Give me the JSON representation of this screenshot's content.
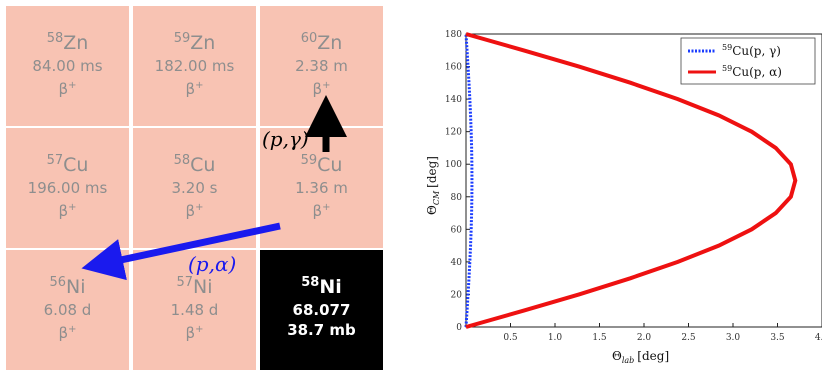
{
  "nuclide_chart": {
    "cells": [
      {
        "mass": "58",
        "symbol": "Zn",
        "halflife": "84.00 ms",
        "mode_base": "β",
        "mode_sup": "+",
        "stable": false
      },
      {
        "mass": "59",
        "symbol": "Zn",
        "halflife": "182.00 ms",
        "mode_base": "β",
        "mode_sup": "+",
        "stable": false
      },
      {
        "mass": "60",
        "symbol": "Zn",
        "halflife": "2.38 m",
        "mode_base": "β",
        "mode_sup": "+",
        "stable": false
      },
      {
        "mass": "57",
        "symbol": "Cu",
        "halflife": "196.00 ms",
        "mode_base": "β",
        "mode_sup": "+",
        "stable": false
      },
      {
        "mass": "58",
        "symbol": "Cu",
        "halflife": "3.20 s",
        "mode_base": "β",
        "mode_sup": "+",
        "stable": false
      },
      {
        "mass": "59",
        "symbol": "Cu",
        "halflife": "1.36 m",
        "mode_base": "β",
        "mode_sup": "+",
        "stable": false
      },
      {
        "mass": "56",
        "symbol": "Ni",
        "halflife": "6.08 d",
        "mode_base": "β",
        "mode_sup": "+",
        "stable": false
      },
      {
        "mass": "57",
        "symbol": "Ni",
        "halflife": "1.48 d",
        "mode_base": "β",
        "mode_sup": "+",
        "stable": false
      },
      {
        "mass": "58",
        "symbol": "Ni",
        "abundance": "68.077",
        "cross_section": "38.7 mb",
        "stable": true
      }
    ],
    "reactions": {
      "gamma_label": "(p,γ)",
      "alpha_label": "(p,α)",
      "gamma_color": "#000000",
      "alpha_color": "#1a1aee"
    }
  },
  "chart_data": {
    "type": "line",
    "xlabel_main": "Θ",
    "xlabel_sub": "lab",
    "xlabel_unit": "[deg]",
    "ylabel_main": "Θ",
    "ylabel_sub": "CM",
    "ylabel_unit": "[deg]",
    "xlim": [
      0,
      4.0
    ],
    "ylim": [
      0,
      180
    ],
    "xticks": [
      "0.5",
      "1.0",
      "1.5",
      "2.0",
      "2.5",
      "3.0",
      "3.5",
      "4.0"
    ],
    "yticks": [
      "0",
      "20",
      "40",
      "60",
      "80",
      "100",
      "120",
      "140",
      "160",
      "180"
    ],
    "grid": false,
    "legend_position": "top-right",
    "series": [
      {
        "name": "59Cu(p, γ)",
        "name_mass": "59",
        "name_text": "Cu(p, γ)",
        "style": "dotted",
        "color": "#1a3cff",
        "theta_cm": [
          0,
          10,
          20,
          30,
          40,
          50,
          60,
          70,
          80,
          90,
          100,
          110,
          120,
          130,
          140,
          150,
          160,
          170,
          180
        ],
        "theta_lab": [
          0,
          0.0116,
          0.0229,
          0.0335,
          0.043,
          0.0513,
          0.058,
          0.063,
          0.066,
          0.067,
          0.066,
          0.063,
          0.058,
          0.0513,
          0.043,
          0.0335,
          0.0229,
          0.0116,
          0
        ]
      },
      {
        "name": "59Cu(p, α)",
        "name_mass": "59",
        "name_text": "Cu(p, α)",
        "style": "solid",
        "color": "#ee1111",
        "theta_cm": [
          0,
          10,
          20,
          30,
          40,
          50,
          60,
          70,
          80,
          90,
          100,
          110,
          120,
          130,
          140,
          150,
          160,
          170,
          180
        ],
        "theta_lab": [
          0,
          0.645,
          1.27,
          1.85,
          2.38,
          2.84,
          3.21,
          3.48,
          3.65,
          3.7,
          3.65,
          3.48,
          3.21,
          2.84,
          2.38,
          1.85,
          1.27,
          0.645,
          0
        ]
      }
    ]
  }
}
